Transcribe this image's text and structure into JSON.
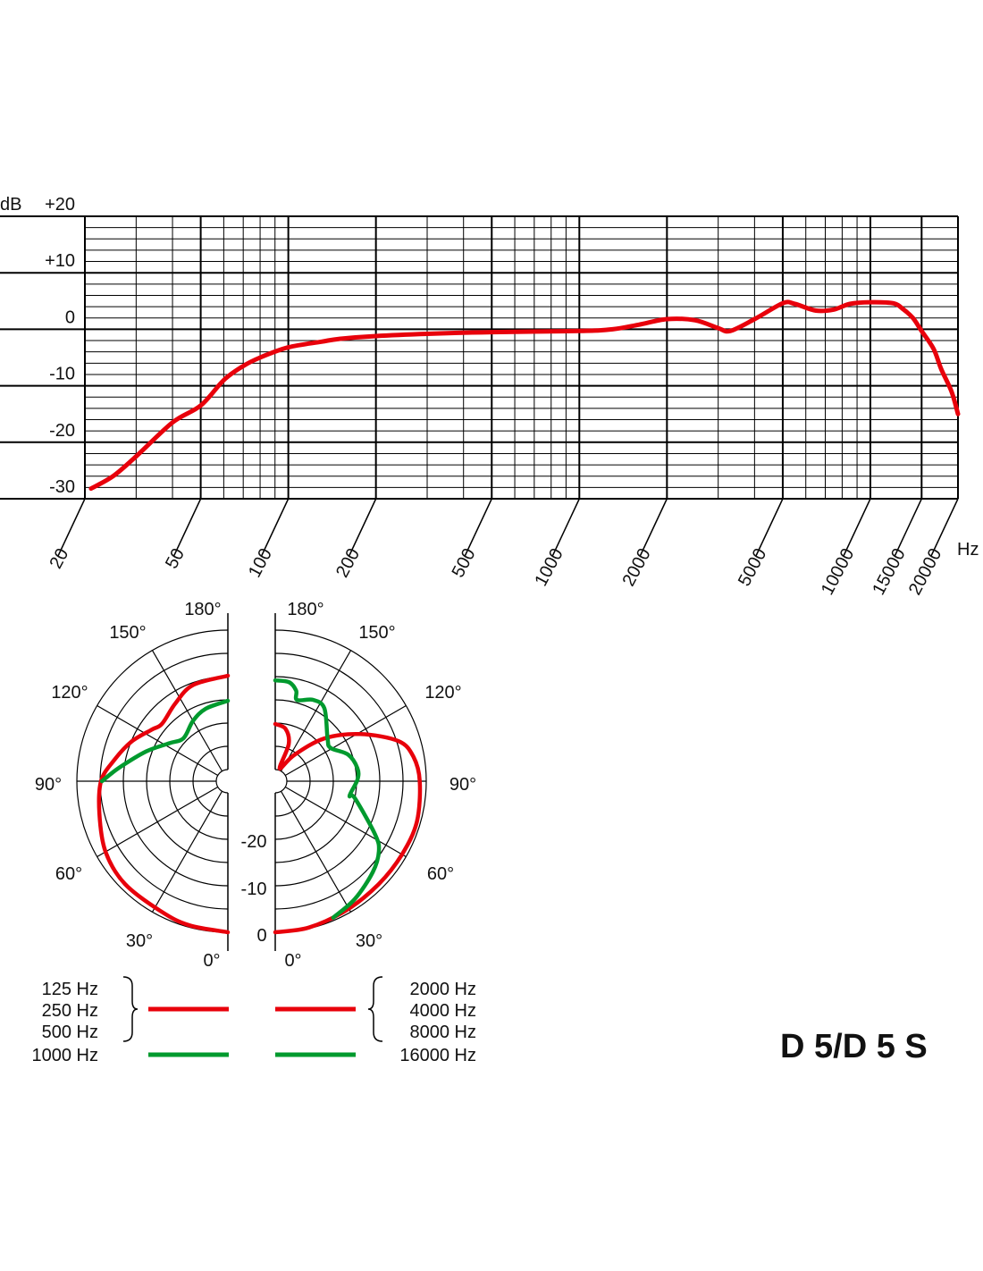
{
  "title": "D 5/D 5 S",
  "colors": {
    "low": "#e8000b",
    "high": "#009a2e",
    "grid": "#000000"
  },
  "chart_data": [
    {
      "type": "line",
      "title": "",
      "xlabel": "Hz",
      "ylabel": "dB",
      "x_scale": "log",
      "xlim": [
        20,
        20000
      ],
      "ylim": [
        -30,
        20
      ],
      "grid": true,
      "x_ticks": [
        "20",
        "50",
        "100",
        "200",
        "500",
        "1000",
        "2000",
        "5000",
        "10000",
        "15000",
        "20000"
      ],
      "x_tick_values": [
        20,
        50,
        100,
        200,
        500,
        1000,
        2000,
        5000,
        10000,
        15000,
        20000
      ],
      "y_ticks": [
        "+20",
        "+10",
        "0",
        "-10",
        "-20",
        "-30"
      ],
      "y_tick_values": [
        20,
        10,
        0,
        -10,
        -20,
        -30
      ],
      "series": [
        {
          "color": "#e8000b",
          "points": [
            [
              21,
              -28.2
            ],
            [
              25,
              -26
            ],
            [
              30,
              -22.5
            ],
            [
              40,
              -16.5
            ],
            [
              50,
              -13.5
            ],
            [
              60,
              -9
            ],
            [
              70,
              -6.5
            ],
            [
              80,
              -5
            ],
            [
              100,
              -3.2
            ],
            [
              130,
              -2.2
            ],
            [
              150,
              -1.7
            ],
            [
              200,
              -1.2
            ],
            [
              300,
              -0.8
            ],
            [
              500,
              -0.5
            ],
            [
              1000,
              -0.3
            ],
            [
              1300,
              0
            ],
            [
              1600,
              0.8
            ],
            [
              2000,
              1.8
            ],
            [
              2500,
              1.6
            ],
            [
              3000,
              0.2
            ],
            [
              3300,
              -0.3
            ],
            [
              4000,
              1.8
            ],
            [
              5000,
              4.6
            ],
            [
              5500,
              4.5
            ],
            [
              6500,
              3.3
            ],
            [
              7500,
              3.5
            ],
            [
              8500,
              4.5
            ],
            [
              10000,
              4.8
            ],
            [
              12000,
              4.6
            ],
            [
              13000,
              3.5
            ],
            [
              14000,
              2
            ],
            [
              15000,
              -0.3
            ],
            [
              16500,
              -3.5
            ],
            [
              17500,
              -7
            ],
            [
              19000,
              -11
            ],
            [
              20000,
              -15
            ]
          ]
        }
      ]
    },
    {
      "type": "polar",
      "title": "",
      "radial_unit": "dB",
      "rlim": [
        -30,
        0
      ],
      "radial_ticks": [
        "-20",
        "-10",
        "0"
      ],
      "angle_ticks": [
        "180°",
        "150°",
        "120°",
        "90°",
        "60°",
        "30°",
        "0°"
      ],
      "halves": [
        {
          "side": "left",
          "series": [
            {
              "name": "125 Hz / 250 Hz / 500 Hz",
              "color": "#e8000b",
              "points": [
                [
                  0,
                  0
                ],
                [
                  15,
                  -0.4
                ],
                [
                  27,
                  -1
                ],
                [
                  45,
                  -1.2
                ],
                [
                  60,
                  -2.1
                ],
                [
                  76,
                  -4
                ],
                [
                  90,
                  -5.2
                ],
                [
                  100,
                  -7.5
                ],
                [
                  112,
                  -10
                ],
                [
                  124,
                  -12.7
                ],
                [
                  131,
                  -13.7
                ],
                [
                  146,
                  -12.3
                ],
                [
                  160,
                  -10.5
                ],
                [
                  180,
                  -9.8
                ]
              ]
            },
            {
              "name": "1000 Hz",
              "color": "#009a2e",
              "points": [
                [
                  90,
                  -5.4
                ],
                [
                  97,
                  -8.9
                ],
                [
                  110,
                  -13.8
                ],
                [
                  123,
                  -17.5
                ],
                [
                  134,
                  -19.2
                ],
                [
                  150,
                  -17.5
                ],
                [
                  163,
                  -16.2
                ],
                [
                  180,
                  -15.2
                ]
              ]
            }
          ]
        },
        {
          "side": "right",
          "series": [
            {
              "name": "2000 Hz / 4000 Hz / 8000 Hz",
              "color": "#e8000b",
              "points": [
                [
                  0,
                  0
                ],
                [
                  13,
                  -0.2
                ],
                [
                  29,
                  -0.8
                ],
                [
                  45,
                  -1.1
                ],
                [
                  60,
                  -1
                ],
                [
                  74,
                  -0.8
                ],
                [
                  90,
                  -1.4
                ],
                [
                  100,
                  -2.3
                ],
                [
                  108,
                  -4.6
                ],
                [
                  119,
                  -11.6
                ],
                [
                  131,
                  -18.5
                ],
                [
                  144,
                  -25.5
                ],
                [
                  161,
                  -29.6
                ],
                [
                  160,
                  -24
                ],
                [
                  169,
                  -21
                ],
                [
                  180,
                  -20.2
                ]
              ]
            },
            {
              "name": "16000 Hz",
              "color": "#009a2e",
              "points": [
                [
                  23,
                  -0.6
                ],
                [
                  34,
                  -1.9
                ],
                [
                  47,
                  -3.8
                ],
                [
                  56,
                  -5.6
                ],
                [
                  62,
                  -8.2
                ],
                [
                  78,
                  -15
                ],
                [
                  79,
                  -16.2
                ],
                [
                  91,
                  -14.8
                ],
                [
                  99,
                  -14.6
                ],
                [
                  110,
                  -15.8
                ],
                [
                  121,
                  -18.6
                ],
                [
                  129,
                  -18
                ],
                [
                  146,
                  -13.6
                ],
                [
                  155,
                  -13.2
                ],
                [
                  165,
                  -14.4
                ],
                [
                  167,
                  -12.5
                ],
                [
                  172,
                  -11
                ],
                [
                  180,
                  -10.8
                ]
              ]
            }
          ]
        }
      ]
    }
  ],
  "legend": {
    "left_labels": [
      "125 Hz",
      "250 Hz",
      "500 Hz",
      "1000 Hz"
    ],
    "right_labels": [
      "2000 Hz",
      "4000 Hz",
      "8000 Hz",
      "16000 Hz"
    ]
  }
}
